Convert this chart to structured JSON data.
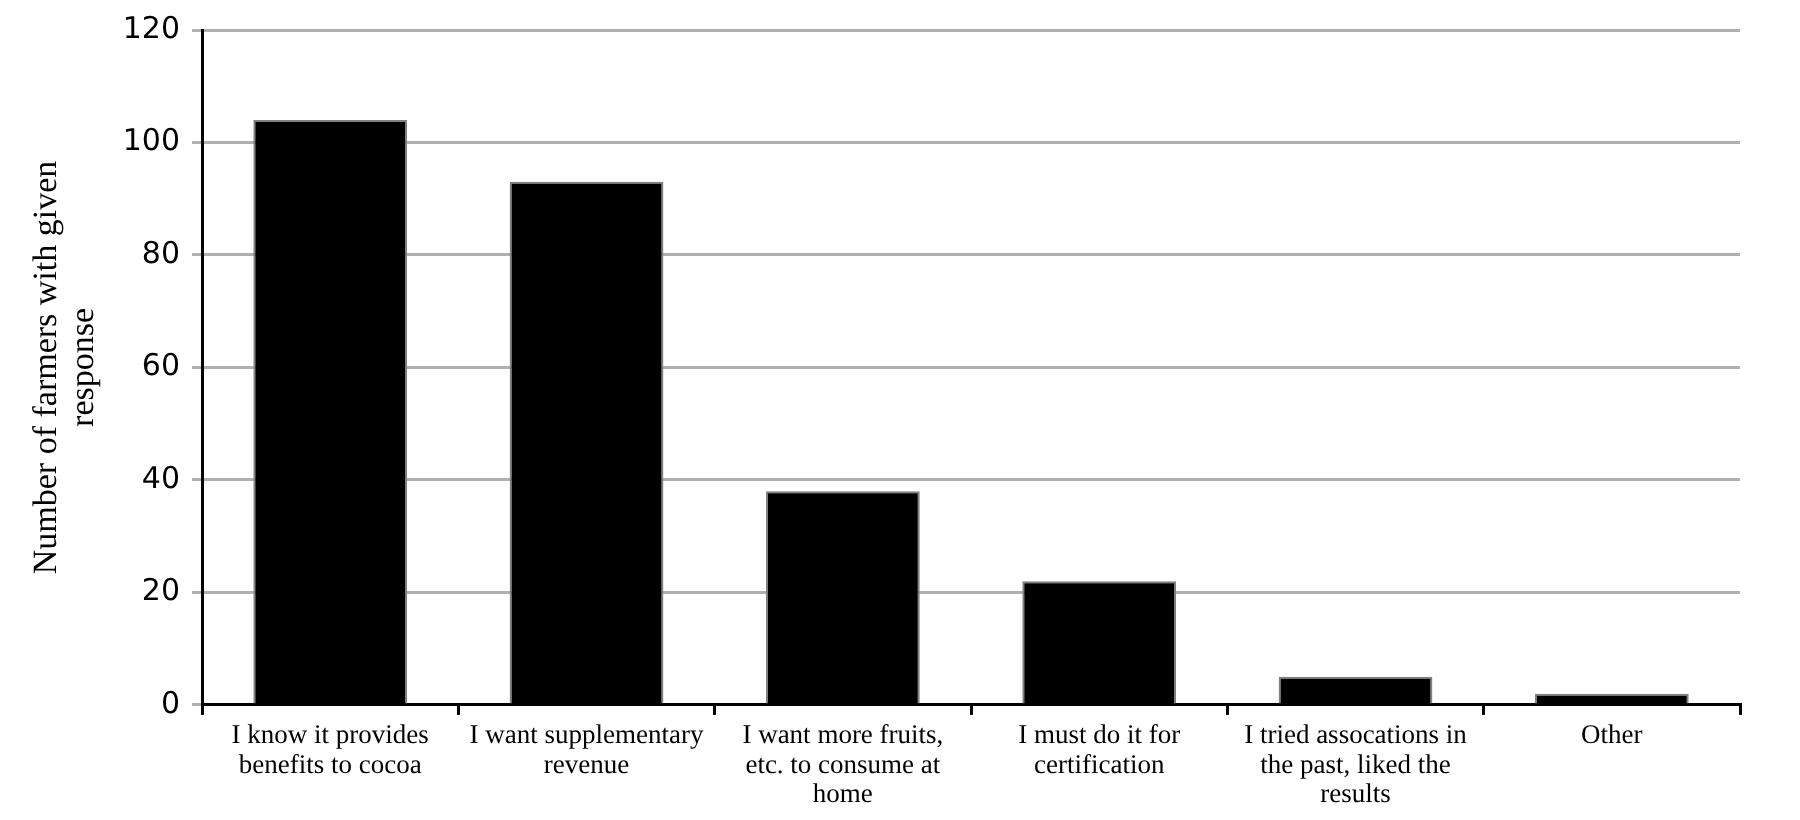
{
  "chart_data": {
    "type": "bar",
    "ylabel": "Number of farmers with given response",
    "categories": [
      "I know it provides benefits to cocoa",
      "I want supplementary revenue",
      "I want more fruits, etc. to consume at home",
      "I must do it for certification",
      "I tried assocations in the past, liked the results",
      "Other"
    ],
    "values": [
      104,
      93,
      38,
      22,
      5,
      2
    ],
    "color": "#000000",
    "ylim": [
      0,
      120
    ],
    "yticks": [
      0,
      20,
      40,
      60,
      80,
      100,
      120
    ],
    "grid": "y",
    "legend": false
  }
}
